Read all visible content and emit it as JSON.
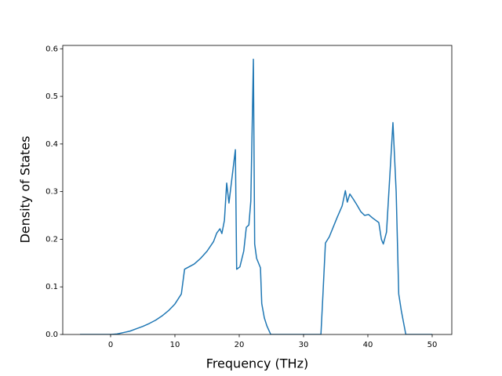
{
  "chart_data": {
    "type": "line",
    "xlabel": "Frequency (THz)",
    "ylabel": "Density of States",
    "x": [
      -4.76,
      0,
      1,
      2,
      3,
      4,
      5,
      6,
      7,
      8,
      9,
      10,
      11,
      11.5,
      13,
      14,
      15,
      16,
      16.5,
      17,
      17.3,
      17.7,
      18.05,
      18.4,
      19.4,
      19.6,
      20.1,
      20.7,
      21.1,
      21.5,
      21.8,
      22.2,
      22.4,
      22.7,
      23.3,
      23.5,
      23.9,
      24.3,
      24.9,
      32.7,
      33.0,
      33.4,
      34.0,
      35.2,
      36.0,
      36.5,
      36.8,
      37.2,
      37.7,
      38.3,
      38.9,
      39.5,
      40.1,
      40.7,
      41.7,
      42.1,
      42.4,
      42.9,
      43.4,
      43.9,
      44.4,
      44.8,
      45.2,
      45.9,
      50
    ],
    "series": [
      {
        "color": "#1f77b4",
        "values": [
          0,
          0,
          0.001,
          0.004,
          0.007,
          0.012,
          0.017,
          0.023,
          0.03,
          0.039,
          0.05,
          0.064,
          0.085,
          0.137,
          0.148,
          0.16,
          0.175,
          0.195,
          0.213,
          0.222,
          0.212,
          0.24,
          0.318,
          0.276,
          0.388,
          0.137,
          0.142,
          0.175,
          0.225,
          0.23,
          0.28,
          0.578,
          0.19,
          0.16,
          0.14,
          0.065,
          0.035,
          0.018,
          0,
          0,
          0.08,
          0.192,
          0.205,
          0.245,
          0.27,
          0.302,
          0.278,
          0.295,
          0.285,
          0.272,
          0.258,
          0.25,
          0.252,
          0.245,
          0.235,
          0.2,
          0.19,
          0.215,
          0.33,
          0.445,
          0.3,
          0.085,
          0.05,
          0,
          0
        ]
      }
    ],
    "xlim": [
      -7.44,
      53.05
    ],
    "xticks": [
      0,
      10,
      20,
      30,
      40,
      50
    ],
    "ylim": [
      0,
      0.607
    ],
    "yticks": [
      {
        "value": 0,
        "label": "0.0"
      },
      0.1,
      0.2,
      0.3,
      0.4,
      0.5,
      0.6
    ]
  }
}
